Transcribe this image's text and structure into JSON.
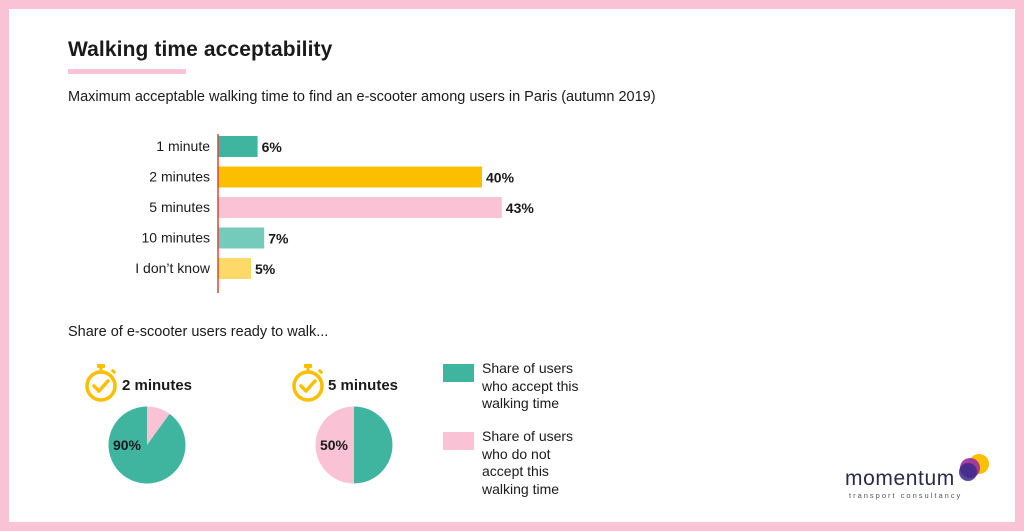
{
  "title": "Walking time acceptability",
  "subtitle": "Maximum acceptable walking time to find an e-scooter among users in Paris (autumn 2019)",
  "section2_title": "Share of e-scooter users ready to walk...",
  "colors": {
    "teal": "#3fb5a0",
    "yellow": "#fbbf00",
    "pink": "#f9c3d5",
    "light_teal": "#74cbbb",
    "light_yellow": "#fdd96a",
    "axis": "#e0452f"
  },
  "chart_data": [
    {
      "type": "bar",
      "orientation": "horizontal",
      "categories": [
        "1 minute",
        "2 minutes",
        "5 minutes",
        "10 minutes",
        "I don’t know"
      ],
      "values": [
        6,
        40,
        43,
        7,
        5
      ],
      "value_labels": [
        "6%",
        "40%",
        "43%",
        "7%",
        "5%"
      ],
      "bar_colors": [
        "#3fb5a0",
        "#fbbf00",
        "#f9c3d5",
        "#74cbbb",
        "#fdd96a"
      ],
      "unit": "%"
    },
    {
      "type": "pie",
      "title": "2 minutes",
      "slices": [
        {
          "label": "Share of users who accept this walking time",
          "value": 90,
          "color": "#3fb5a0"
        },
        {
          "label": "Share of users who do not accept this walking time",
          "value": 10,
          "color": "#f9c3d5"
        }
      ],
      "value_label": "90%"
    },
    {
      "type": "pie",
      "title": "5 minutes",
      "slices": [
        {
          "label": "Share of users who accept this walking time",
          "value": 50,
          "color": "#3fb5a0"
        },
        {
          "label": "Share of users who do not accept this walking time",
          "value": 50,
          "color": "#f9c3d5"
        }
      ],
      "value_label": "50%"
    }
  ],
  "pies": [
    {
      "title": "2 minutes",
      "value_label": "90%"
    },
    {
      "title": "5 minutes",
      "value_label": "50%"
    }
  ],
  "legend": [
    {
      "label": "Share of users who accept this walking time",
      "color": "#3fb5a0"
    },
    {
      "label": "Share of users who do not accept this walking time",
      "color": "#f9c3d5"
    }
  ],
  "logo": {
    "name": "momentum",
    "tagline": "transport consultancy"
  }
}
